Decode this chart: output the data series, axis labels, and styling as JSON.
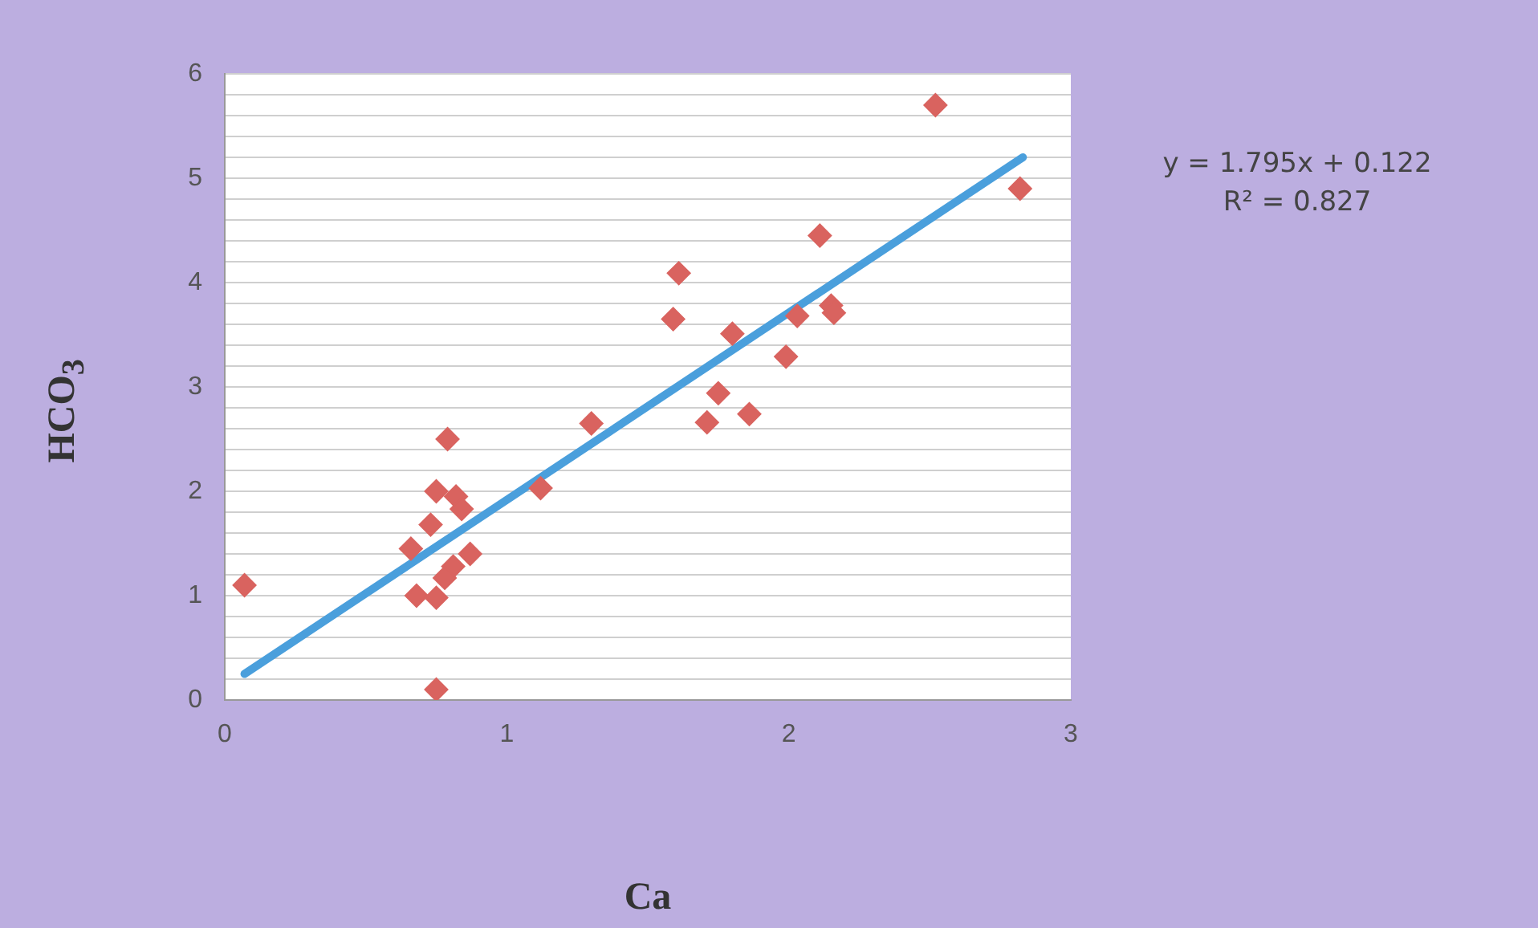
{
  "chart_data": {
    "type": "scatter",
    "xlabel": "Ca",
    "ylabel": "HCO$_{3}$",
    "marker": "diamond",
    "grid": "y",
    "legend": false,
    "xlim": [
      0,
      3
    ],
    "xticks": [
      0,
      1,
      2,
      3
    ],
    "ylim": [
      0,
      6
    ],
    "yticks": [
      0,
      {
        "value": 0.2,
        "label": null
      },
      {
        "value": 0.4,
        "label": null
      },
      {
        "value": 0.6,
        "label": null
      },
      {
        "value": 0.8,
        "label": null
      },
      1,
      {
        "value": 1.2,
        "label": null
      },
      {
        "value": 1.4,
        "label": null
      },
      {
        "value": 1.6,
        "label": null
      },
      {
        "value": 1.8,
        "label": null
      },
      2,
      {
        "value": 2.2,
        "label": null
      },
      {
        "value": 2.4,
        "label": null
      },
      {
        "value": 2.6,
        "label": null
      },
      {
        "value": 2.8,
        "label": null
      },
      3,
      {
        "value": 3.2,
        "label": null
      },
      {
        "value": 3.4,
        "label": null
      },
      {
        "value": 3.6,
        "label": null
      },
      {
        "value": 3.8,
        "label": null
      },
      4,
      {
        "value": 4.2,
        "label": null
      },
      {
        "value": 4.4,
        "label": null
      },
      {
        "value": 4.6,
        "label": null
      },
      {
        "value": 4.8,
        "label": null
      },
      5,
      {
        "value": 5.2,
        "label": null
      },
      {
        "value": 5.4,
        "label": null
      },
      {
        "value": 5.6,
        "label": null
      },
      {
        "value": 5.8,
        "label": null
      },
      6
    ],
    "series": [
      {
        "color": "#d9635f",
        "x": [
          0.07,
          0.75,
          0.79,
          0.75,
          0.82,
          0.84,
          0.73,
          0.66,
          0.87,
          0.81,
          0.78,
          0.68,
          0.75,
          1.12,
          1.3,
          1.59,
          1.61,
          1.8,
          1.71,
          1.75,
          1.86,
          1.99,
          2.03,
          2.11,
          2.15,
          2.16,
          2.52,
          2.82
        ],
        "values": [
          1.1,
          0.1,
          2.5,
          2.0,
          1.95,
          1.83,
          1.68,
          1.45,
          1.4,
          1.28,
          1.17,
          1.0,
          0.98,
          2.03,
          2.65,
          3.65,
          4.09,
          3.51,
          2.66,
          2.94,
          2.74,
          3.29,
          3.68,
          4.45,
          3.78,
          3.71,
          5.7,
          4.9
        ]
      },
      {
        "type": "line",
        "color": "#4a9fdc",
        "marker": "none",
        "x": [
          0.07,
          2.83
        ],
        "values": [
          0.25,
          5.2
        ]
      }
    ],
    "annotations": [
      "y = 1.795x + 0.122",
      "R² = 0.827"
    ]
  }
}
